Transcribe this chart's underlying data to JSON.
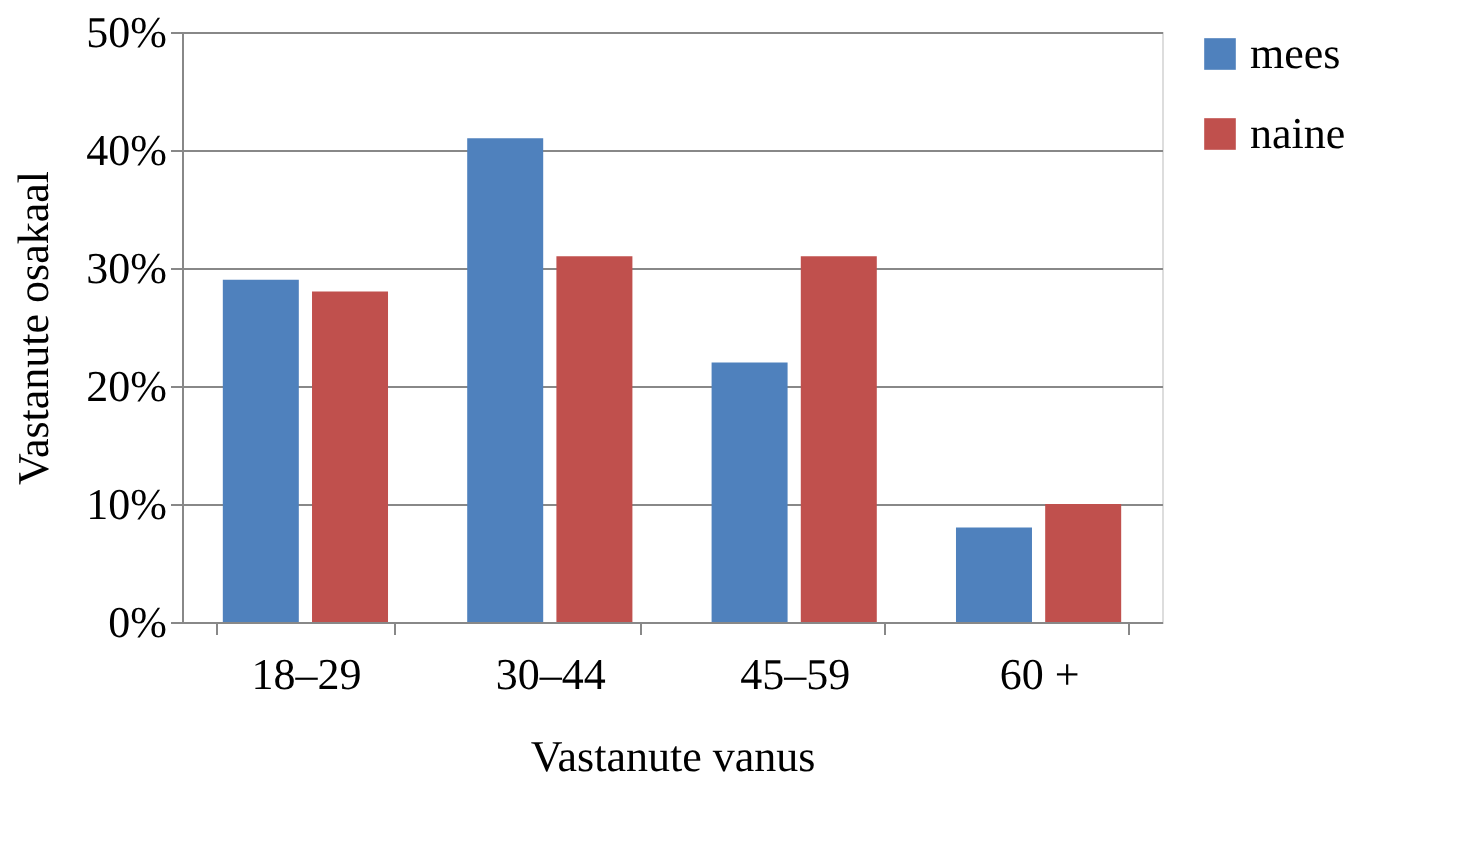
{
  "chart_data": {
    "type": "bar",
    "xlabel": "Vastanute vanus",
    "ylabel": "Vastanute osakaal",
    "categories": [
      "18–29",
      "30–44",
      "45–59",
      "60 +"
    ],
    "series": [
      {
        "name": "mees",
        "color": "#4f81bd",
        "values": [
          29,
          41,
          22,
          8
        ]
      },
      {
        "name": "naine",
        "color": "#c0504d",
        "values": [
          28,
          31,
          31,
          10
        ]
      }
    ],
    "ylim": [
      0,
      50
    ],
    "yticks": [
      {
        "value": 0,
        "label": "0%"
      },
      {
        "value": 10,
        "label": "10%"
      },
      {
        "value": 20,
        "label": "20%"
      },
      {
        "value": 30,
        "label": "30%"
      },
      {
        "value": 40,
        "label": "40%"
      },
      {
        "value": 50,
        "label": "50%"
      }
    ],
    "grid": "y",
    "legend": "right"
  }
}
